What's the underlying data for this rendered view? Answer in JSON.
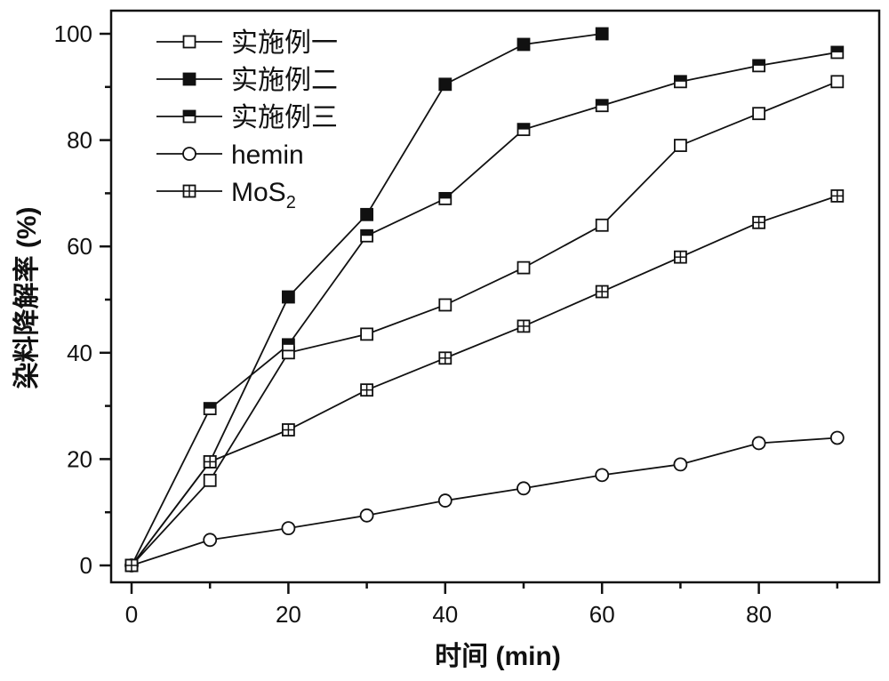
{
  "chart_data": {
    "type": "line",
    "title": "",
    "xlabel": "时间 (min)",
    "ylabel": "染料降解率 (%)",
    "xlim": [
      -3,
      95
    ],
    "ylim": [
      -3,
      104
    ],
    "xticks": [
      0,
      20,
      40,
      60,
      80
    ],
    "yticks": [
      0,
      20,
      40,
      60,
      80,
      100
    ],
    "grid": false,
    "legend_position": "top-left",
    "series": [
      {
        "name": "实施例一",
        "marker": "square-open",
        "x": [
          0,
          10,
          20,
          30,
          40,
          50,
          60,
          70,
          80,
          90
        ],
        "y": [
          0,
          16,
          40,
          43.5,
          49,
          56,
          64,
          79,
          85,
          91
        ]
      },
      {
        "name": "实施例二",
        "marker": "square-filled",
        "x": [
          0,
          10,
          20,
          30,
          40,
          50,
          60
        ],
        "y": [
          0,
          19.5,
          50.5,
          66,
          90.5,
          98,
          100
        ]
      },
      {
        "name": "实施例三",
        "marker": "square-half",
        "x": [
          0,
          10,
          20,
          30,
          40,
          50,
          60,
          70,
          80,
          90
        ],
        "y": [
          0,
          29.5,
          41.5,
          62,
          69,
          82,
          86.5,
          91,
          94,
          96.5
        ]
      },
      {
        "name": "hemin",
        "marker": "circle-open",
        "x": [
          0,
          10,
          20,
          30,
          40,
          50,
          60,
          70,
          80,
          90
        ],
        "y": [
          0,
          4.8,
          7,
          9.4,
          12.2,
          14.5,
          17,
          19,
          23,
          24
        ]
      },
      {
        "name": "MoS2",
        "label_main": "MoS",
        "label_sub": "2",
        "marker": "square-cross",
        "x": [
          0,
          10,
          20,
          30,
          40,
          50,
          60,
          70,
          80,
          90
        ],
        "y": [
          0,
          19.5,
          25.5,
          33,
          39,
          45,
          51.5,
          58,
          64.5,
          69.5
        ]
      }
    ]
  }
}
